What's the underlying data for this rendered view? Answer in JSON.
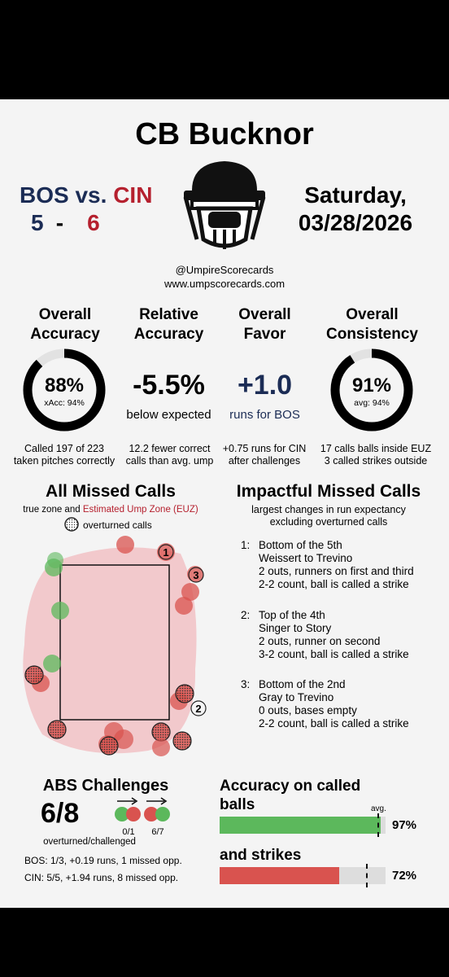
{
  "header": {
    "umpire_name": "CB Bucknor",
    "away_team": "BOS",
    "vs": "vs.",
    "home_team": "CIN",
    "away_score": "5",
    "dash": "-",
    "home_score": "6",
    "day": "Saturday,",
    "date": "03/28/2026",
    "handle": "@UmpireScorecards",
    "website": "www.umpscorecards.com"
  },
  "metrics": {
    "overall_accuracy": {
      "title_1": "Overall",
      "title_2": "Accuracy",
      "value": "88%",
      "sub": "xAcc: 94%",
      "fraction": 0.88,
      "note_1": "Called 197 of 223",
      "note_2": "taken pitches correctly"
    },
    "relative_accuracy": {
      "title_1": "Relative",
      "title_2": "Accuracy",
      "value": "-5.5%",
      "sub": "below expected",
      "note_1": "12.2 fewer correct",
      "note_2": "calls than avg. ump"
    },
    "overall_favor": {
      "title_1": "Overall",
      "title_2": "Favor",
      "value": "+1.0",
      "sub": "runs for BOS",
      "note_1": "+0.75 runs for CIN",
      "note_2": "after challenges"
    },
    "overall_consistency": {
      "title_1": "Overall",
      "title_2": "Consistency",
      "value": "91%",
      "sub": "avg: 94%",
      "fraction": 0.91,
      "note_1": "17 calls balls inside EUZ",
      "note_2": "3 called strikes outside"
    }
  },
  "missed_calls": {
    "title": "All Missed Calls",
    "legend_true_zone": "true zone and",
    "legend_euz": "Estimated Ump Zone (EUZ)",
    "legend_overturned": "overturned calls",
    "marker_labels": [
      "1",
      "2",
      "3"
    ]
  },
  "impactful": {
    "title": "Impactful Missed Calls",
    "subtitle_1": "largest changes in run expectancy",
    "subtitle_2": "excluding overturned calls",
    "items": [
      {
        "num": "1:",
        "line1": "Bottom of the 5th",
        "line2": "Weissert to Trevino",
        "line3": "2 outs, runners on first and third",
        "line4": "2-2 count, ball is called a strike"
      },
      {
        "num": "2:",
        "line1": "Top of the 4th",
        "line2": "Singer to Story",
        "line3": "2 outs, runner on second",
        "line4": "3-2 count, ball is called a strike"
      },
      {
        "num": "3:",
        "line1": "Bottom of the 2nd",
        "line2": "Gray to Trevino",
        "line3": "0 outs, bases empty",
        "line4": "2-2 count, ball is called a strike"
      }
    ]
  },
  "abs": {
    "title": "ABS Challenges",
    "value": "6/8",
    "left_ratio": "0/1",
    "right_ratio": "6/7",
    "caption": "overturned/challenged",
    "bos_line": "BOS: 1/3, +0.19 runs, 1 missed opp.",
    "cin_line": "CIN: 5/5, +1.94 runs, 8 missed opp."
  },
  "accuracy_bars": {
    "title_1": "Accuracy on called",
    "title_2": "balls",
    "title_3": "and strikes",
    "avg_label": "avg.",
    "balls_value": "97%",
    "balls_fraction": 0.97,
    "balls_avg_fraction": 0.95,
    "strikes_value": "72%",
    "strikes_fraction": 0.72,
    "strikes_avg_fraction": 0.88,
    "balls_color": "#5cb85c",
    "strikes_color": "#d9534f"
  },
  "colors": {
    "away": "#1b2c55",
    "home": "#b5202e",
    "ball_miss": "#5cb85c",
    "strike_miss": "#d9534f",
    "euz_fill": "#f2c9cc"
  }
}
